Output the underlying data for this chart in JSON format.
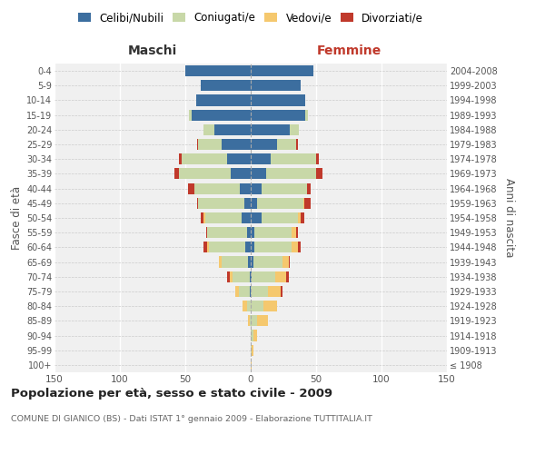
{
  "age_groups": [
    "100+",
    "95-99",
    "90-94",
    "85-89",
    "80-84",
    "75-79",
    "70-74",
    "65-69",
    "60-64",
    "55-59",
    "50-54",
    "45-49",
    "40-44",
    "35-39",
    "30-34",
    "25-29",
    "20-24",
    "15-19",
    "10-14",
    "5-9",
    "0-4"
  ],
  "birth_years": [
    "≤ 1908",
    "1909-1913",
    "1914-1918",
    "1919-1923",
    "1924-1928",
    "1929-1933",
    "1934-1938",
    "1939-1943",
    "1944-1948",
    "1949-1953",
    "1954-1958",
    "1959-1963",
    "1964-1968",
    "1969-1973",
    "1974-1978",
    "1979-1983",
    "1984-1988",
    "1989-1993",
    "1994-1998",
    "1999-2003",
    "2004-2008"
  ],
  "colors": {
    "celibi": "#3c6e9f",
    "coniugati": "#c8d8a8",
    "vedovi": "#f5c86e",
    "divorziati": "#c0392b"
  },
  "maschi": {
    "celibi": [
      0,
      0,
      0,
      0,
      0,
      1,
      1,
      2,
      4,
      3,
      7,
      5,
      8,
      15,
      18,
      22,
      28,
      45,
      42,
      38,
      50
    ],
    "coniugati": [
      0,
      0,
      0,
      1,
      3,
      8,
      13,
      20,
      28,
      30,
      28,
      35,
      35,
      40,
      35,
      18,
      8,
      2,
      0,
      0,
      0
    ],
    "vedovi": [
      0,
      0,
      0,
      1,
      3,
      3,
      2,
      2,
      1,
      0,
      1,
      0,
      0,
      0,
      0,
      0,
      0,
      0,
      0,
      0,
      0
    ],
    "divorziati": [
      0,
      0,
      0,
      0,
      0,
      0,
      2,
      0,
      3,
      1,
      2,
      1,
      5,
      3,
      2,
      1,
      0,
      0,
      0,
      0,
      0
    ]
  },
  "femmine": {
    "celibi": [
      0,
      0,
      0,
      0,
      0,
      0,
      1,
      2,
      3,
      3,
      8,
      5,
      8,
      12,
      15,
      20,
      30,
      42,
      42,
      38,
      48
    ],
    "coniugati": [
      0,
      1,
      2,
      5,
      10,
      13,
      18,
      22,
      28,
      28,
      28,
      35,
      35,
      38,
      35,
      15,
      7,
      2,
      0,
      0,
      0
    ],
    "vedovi": [
      1,
      1,
      3,
      8,
      10,
      10,
      8,
      5,
      5,
      4,
      2,
      1,
      0,
      0,
      0,
      0,
      0,
      0,
      0,
      0,
      0
    ],
    "divorziati": [
      0,
      0,
      0,
      0,
      0,
      1,
      2,
      1,
      2,
      1,
      3,
      5,
      3,
      5,
      2,
      1,
      0,
      0,
      0,
      0,
      0
    ]
  },
  "title": "Popolazione per età, sesso e stato civile - 2009",
  "subtitle": "COMUNE DI GIANICO (BS) - Dati ISTAT 1° gennaio 2009 - Elaborazione TUTTITALIA.IT",
  "xlabel_left": "Maschi",
  "xlabel_right": "Femmine",
  "ylabel_left": "Fasce di età",
  "ylabel_right": "Anni di nascita",
  "xlim": 150,
  "legend_labels": [
    "Celibi/Nubili",
    "Coniugati/e",
    "Vedovi/e",
    "Divorziati/e"
  ],
  "background_color": "#f0f0f0"
}
